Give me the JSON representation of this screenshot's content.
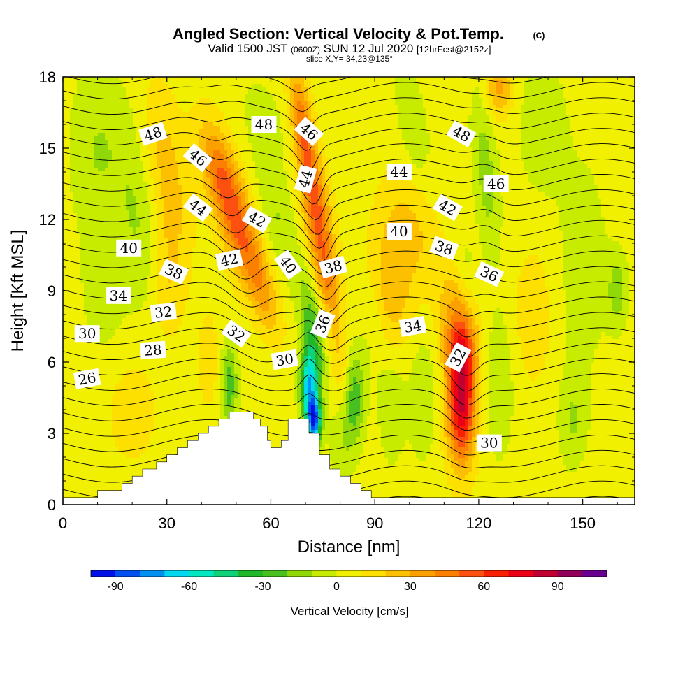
{
  "title": {
    "main": "Angled Section: Vertical Velocity & Pot.Temp.",
    "main_unit": "(C)",
    "valid_prefix": "Valid 1500 JST",
    "valid_z": "(0600Z)",
    "valid_date": "SUN 12 Jul 2020",
    "valid_fcst": "[12hrFcst@2152z]",
    "slice": "slice X,Y= 34,23@135°"
  },
  "chart_data": {
    "type": "heatmap",
    "xlabel": "Distance [nm]",
    "ylabel": "Height [Kft MSL]",
    "xlim": [
      0,
      165
    ],
    "ylim": [
      0,
      18
    ],
    "x_ticks": [
      0,
      30,
      60,
      90,
      120,
      150
    ],
    "y_ticks": [
      0,
      3,
      6,
      9,
      12,
      15,
      18
    ],
    "grid": false,
    "colorbar": {
      "label": "Vertical Velocity [cm/s]",
      "range": [
        -100,
        110
      ],
      "tick_values": [
        -90,
        -60,
        -30,
        0,
        30,
        60,
        90
      ],
      "tick_labels": [
        "-90",
        "-60",
        "-30",
        "0",
        "30",
        "60",
        "90"
      ],
      "colors": [
        "#0010e8",
        "#0050f0",
        "#0090f0",
        "#00d8f0",
        "#00e8c0",
        "#10d078",
        "#20b828",
        "#48c020",
        "#90d808",
        "#c8ec00",
        "#f0f000",
        "#fde000",
        "#fcc000",
        "#fca000",
        "#fc8000",
        "#fc5010",
        "#f82000",
        "#ec0018",
        "#c00030",
        "#900058",
        "#6a0090"
      ]
    },
    "terrain": [
      [
        0,
        0.3
      ],
      [
        10,
        0.3
      ],
      [
        10,
        0.6
      ],
      [
        17,
        0.6
      ],
      [
        17,
        0.9
      ],
      [
        20,
        0.9
      ],
      [
        20,
        1.2
      ],
      [
        23,
        1.2
      ],
      [
        23,
        1.5
      ],
      [
        27,
        1.5
      ],
      [
        27,
        1.8
      ],
      [
        30,
        1.8
      ],
      [
        30,
        2.1
      ],
      [
        33,
        2.1
      ],
      [
        33,
        2.4
      ],
      [
        36,
        2.4
      ],
      [
        36,
        2.7
      ],
      [
        39,
        2.7
      ],
      [
        39,
        3.0
      ],
      [
        42,
        3.0
      ],
      [
        42,
        3.3
      ],
      [
        45,
        3.3
      ],
      [
        45,
        3.6
      ],
      [
        48,
        3.6
      ],
      [
        48,
        3.9
      ],
      [
        55,
        3.9
      ],
      [
        55,
        3.6
      ],
      [
        57,
        3.6
      ],
      [
        57,
        3.3
      ],
      [
        59,
        3.3
      ],
      [
        59,
        2.7
      ],
      [
        60,
        2.7
      ],
      [
        60,
        2.4
      ],
      [
        63,
        2.4
      ],
      [
        63,
        2.7
      ],
      [
        65,
        2.7
      ],
      [
        65,
        3.6
      ],
      [
        71,
        3.6
      ],
      [
        71,
        3.0
      ],
      [
        74,
        3.0
      ],
      [
        74,
        2.1
      ],
      [
        77,
        2.1
      ],
      [
        77,
        1.5
      ],
      [
        80,
        1.5
      ],
      [
        80,
        1.2
      ],
      [
        83,
        1.2
      ],
      [
        83,
        0.9
      ],
      [
        86,
        0.9
      ],
      [
        86,
        0.6
      ],
      [
        89,
        0.6
      ],
      [
        89,
        0.3
      ],
      [
        165,
        0.3
      ]
    ],
    "velocity_features": [
      {
        "x": 45,
        "y": 14.0,
        "sx": 5,
        "sy": 2.2,
        "v": 35,
        "tilt": -1.4
      },
      {
        "x": 51,
        "y": 11.5,
        "sx": 5,
        "sy": 2.5,
        "v": 40,
        "tilt": -1.4
      },
      {
        "x": 58,
        "y": 9.0,
        "sx": 4,
        "sy": 2.0,
        "v": 25,
        "tilt": -1.4
      },
      {
        "x": 69,
        "y": 16.0,
        "sx": 3,
        "sy": 2.5,
        "v": 40,
        "tilt": -0.9
      },
      {
        "x": 73,
        "y": 12.5,
        "sx": 4,
        "sy": 2.5,
        "v": 42,
        "tilt": -0.9
      },
      {
        "x": 76,
        "y": 9.5,
        "sx": 3.5,
        "sy": 2.0,
        "v": 30,
        "tilt": -0.9
      },
      {
        "x": 80,
        "y": 6.0,
        "sx": 3.5,
        "sy": 2.0,
        "v": 15,
        "tilt": -0.9
      },
      {
        "x": 58,
        "y": 16.0,
        "sx": 6,
        "sy": 2.0,
        "v": -10,
        "tilt": -1.2
      },
      {
        "x": 62,
        "y": 12.0,
        "sx": 5,
        "sy": 2.5,
        "v": -15,
        "tilt": -1.2
      },
      {
        "x": 72,
        "y": 7.5,
        "sx": 3.5,
        "sy": 2.3,
        "v": -30,
        "tilt": -0.9
      },
      {
        "x": 71,
        "y": 5.0,
        "sx": 2.5,
        "sy": 1.6,
        "v": -70,
        "tilt": 0
      },
      {
        "x": 72.5,
        "y": 3.5,
        "sx": 2.0,
        "sy": 1.0,
        "v": -80,
        "tilt": 0
      },
      {
        "x": 48,
        "y": 5.0,
        "sx": 2.5,
        "sy": 1.8,
        "v": -30,
        "tilt": 0
      },
      {
        "x": 84,
        "y": 4.5,
        "sx": 3.0,
        "sy": 2.0,
        "v": -35,
        "tilt": 0
      },
      {
        "x": 90,
        "y": 8.0,
        "sx": 3.5,
        "sy": 2.5,
        "v": -10,
        "tilt": 0
      },
      {
        "x": 80,
        "y": 2.5,
        "sx": 3.5,
        "sy": 1.5,
        "v": -12,
        "tilt": 0
      },
      {
        "x": 115,
        "y": 4.2,
        "sx": 4.0,
        "sy": 2.5,
        "v": 75,
        "tilt": 0
      },
      {
        "x": 115,
        "y": 6.5,
        "sx": 4.5,
        "sy": 1.5,
        "v": 40,
        "tilt": 0
      },
      {
        "x": 113,
        "y": 8.5,
        "sx": 5,
        "sy": 2.0,
        "v": 20,
        "tilt": 0
      },
      {
        "x": 104,
        "y": 4.5,
        "sx": 4,
        "sy": 2.5,
        "v": -15,
        "tilt": 0
      },
      {
        "x": 95,
        "y": 4.0,
        "sx": 4,
        "sy": 2.5,
        "v": -12,
        "tilt": 0
      },
      {
        "x": 126,
        "y": 5.0,
        "sx": 4,
        "sy": 3.0,
        "v": -15,
        "tilt": 0
      },
      {
        "x": 147,
        "y": 3.5,
        "sx": 4,
        "sy": 2.0,
        "v": -15,
        "tilt": 0
      },
      {
        "x": 122,
        "y": 14.0,
        "sx": 3.5,
        "sy": 3.5,
        "v": -20,
        "tilt": -0.5
      },
      {
        "x": 116,
        "y": 10.0,
        "sx": 3.5,
        "sy": 1.5,
        "v": -12,
        "tilt": -0.5
      },
      {
        "x": 126,
        "y": 17.5,
        "sx": 4.0,
        "sy": 1.2,
        "v": 28,
        "tilt": 0
      },
      {
        "x": 101,
        "y": 16.0,
        "sx": 4,
        "sy": 2.5,
        "v": -15,
        "tilt": -1.0
      },
      {
        "x": 100,
        "y": 11.5,
        "sx": 8,
        "sy": 2.5,
        "v": 18,
        "tilt": -0.7
      },
      {
        "x": 94,
        "y": 9.0,
        "sx": 6,
        "sy": 2.5,
        "v": 22,
        "tilt": -0.5
      },
      {
        "x": 30,
        "y": 14.0,
        "sx": 6,
        "sy": 3.5,
        "v": 20,
        "tilt": -0.8
      },
      {
        "x": 30,
        "y": 9.5,
        "sx": 5,
        "sy": 2.5,
        "v": 15,
        "tilt": 0
      },
      {
        "x": 22,
        "y": 12.0,
        "sx": 6,
        "sy": 4.0,
        "v": -15,
        "tilt": -0.6
      },
      {
        "x": 10,
        "y": 15.0,
        "sx": 8,
        "sy": 3.5,
        "v": -15,
        "tilt": 0
      },
      {
        "x": 12,
        "y": 9.0,
        "sx": 7,
        "sy": 3.0,
        "v": -10,
        "tilt": 0
      },
      {
        "x": 138,
        "y": 16.0,
        "sx": 7,
        "sy": 3.0,
        "v": -12,
        "tilt": 0
      },
      {
        "x": 150,
        "y": 10.0,
        "sx": 8,
        "sy": 5.0,
        "v": -10,
        "tilt": 0
      },
      {
        "x": 160,
        "y": 9.0,
        "sx": 3,
        "sy": 1.5,
        "v": -20,
        "tilt": 0
      },
      {
        "x": 136,
        "y": 8.0,
        "sx": 6,
        "sy": 3.0,
        "v": 12,
        "tilt": 0
      },
      {
        "x": 20,
        "y": 4.0,
        "sx": 8,
        "sy": 2.5,
        "v": 10,
        "tilt": 0
      },
      {
        "x": 42,
        "y": 6.0,
        "sx": 3,
        "sy": 2.0,
        "v": 12,
        "tilt": 0
      }
    ],
    "theta_levels": [
      22,
      23,
      24,
      25,
      26,
      27,
      28,
      29,
      30,
      31,
      32,
      33,
      34,
      35,
      36,
      37,
      38,
      39,
      40,
      41,
      42,
      43,
      44,
      45,
      46,
      47,
      48,
      49,
      50
    ],
    "theta_labels": [
      {
        "text": "48",
        "x": 26,
        "y": 15.6,
        "rot": -18
      },
      {
        "text": "46",
        "x": 39,
        "y": 14.6,
        "rot": 40
      },
      {
        "text": "44",
        "x": 39,
        "y": 12.5,
        "rot": 38
      },
      {
        "text": "40",
        "x": 19,
        "y": 10.8,
        "rot": 0
      },
      {
        "text": "38",
        "x": 32,
        "y": 9.8,
        "rot": 25
      },
      {
        "text": "34",
        "x": 16,
        "y": 8.8,
        "rot": 0
      },
      {
        "text": "32",
        "x": 29,
        "y": 8.1,
        "rot": -6
      },
      {
        "text": "30",
        "x": 7,
        "y": 7.2,
        "rot": 0
      },
      {
        "text": "28",
        "x": 26,
        "y": 6.5,
        "rot": -4
      },
      {
        "text": "26",
        "x": 7,
        "y": 5.3,
        "rot": -10
      },
      {
        "text": "48",
        "x": 58,
        "y": 16.0,
        "rot": 0
      },
      {
        "text": "42",
        "x": 56,
        "y": 12.0,
        "rot": 30
      },
      {
        "text": "42",
        "x": 48,
        "y": 10.3,
        "rot": -12
      },
      {
        "text": "32",
        "x": 50,
        "y": 7.2,
        "rot": 35
      },
      {
        "text": "46",
        "x": 71,
        "y": 15.7,
        "rot": 42
      },
      {
        "text": "44",
        "x": 70,
        "y": 13.7,
        "rot": -75
      },
      {
        "text": "40",
        "x": 65,
        "y": 10.1,
        "rot": 55
      },
      {
        "text": "38",
        "x": 78,
        "y": 10.0,
        "rot": -15
      },
      {
        "text": "36",
        "x": 75,
        "y": 7.6,
        "rot": -68
      },
      {
        "text": "30",
        "x": 64,
        "y": 6.1,
        "rot": -10
      },
      {
        "text": "44",
        "x": 97,
        "y": 14.0,
        "rot": 0
      },
      {
        "text": "48",
        "x": 115,
        "y": 15.6,
        "rot": 30
      },
      {
        "text": "42",
        "x": 111,
        "y": 12.5,
        "rot": 30
      },
      {
        "text": "46",
        "x": 125,
        "y": 13.5,
        "rot": 0
      },
      {
        "text": "40",
        "x": 97,
        "y": 11.5,
        "rot": 0
      },
      {
        "text": "38",
        "x": 110,
        "y": 10.8,
        "rot": 20
      },
      {
        "text": "36",
        "x": 123,
        "y": 9.7,
        "rot": 25
      },
      {
        "text": "34",
        "x": 101,
        "y": 7.5,
        "rot": -10
      },
      {
        "text": "32",
        "x": 114,
        "y": 6.2,
        "rot": -62
      },
      {
        "text": "30",
        "x": 123,
        "y": 2.6,
        "rot": 0
      }
    ]
  }
}
